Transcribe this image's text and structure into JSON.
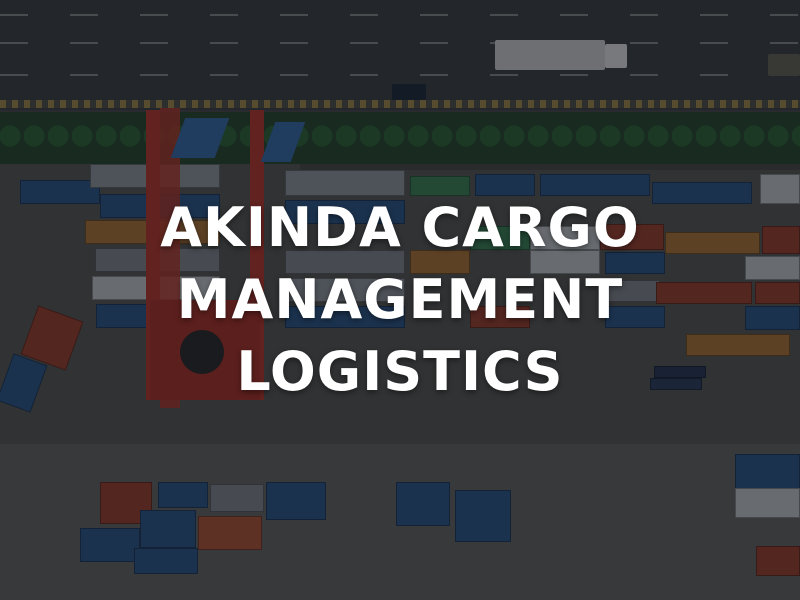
{
  "image": {
    "subject": "aerial-shipping-container-port",
    "headline_lines": [
      "AKINDA CARGO",
      "MANAGEMENT",
      "LOGISTICS"
    ],
    "colors": {
      "overlay": "#0a0e14",
      "text": "#ffffff",
      "crane_red": "#c23a2c",
      "crane_blue": "#3a6fb0",
      "container_blue": "#2f5a8f",
      "container_red": "#a5412e",
      "container_green": "#3f8a5a",
      "container_orange": "#b87a3a",
      "container_white": "#cfd3d6"
    }
  }
}
